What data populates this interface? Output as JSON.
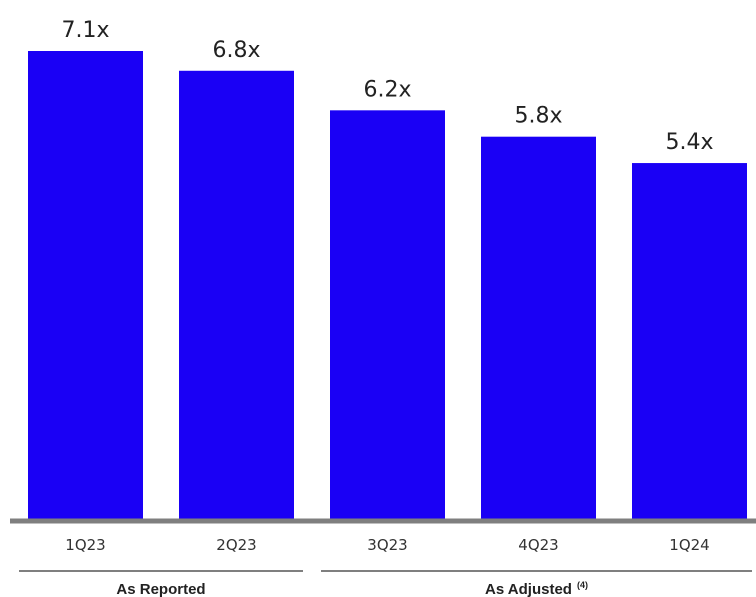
{
  "chart_data": {
    "type": "bar",
    "categories": [
      "1Q23",
      "2Q23",
      "3Q23",
      "4Q23",
      "1Q24"
    ],
    "values": [
      7.1,
      6.8,
      6.2,
      5.8,
      5.4
    ],
    "value_labels": [
      "7.1x",
      "6.8x",
      "6.2x",
      "5.8x",
      "5.4x"
    ],
    "ylim": [
      0,
      7.1
    ],
    "bar_color": "#1a00f5",
    "axis_color": "#7f7f7f",
    "groups": [
      {
        "label": "As Reported",
        "superscript": "",
        "categories": [
          "1Q23",
          "2Q23"
        ]
      },
      {
        "label": "As Adjusted",
        "superscript": "(4)",
        "categories": [
          "3Q23",
          "4Q23",
          "1Q24"
        ]
      }
    ],
    "grid": false
  }
}
